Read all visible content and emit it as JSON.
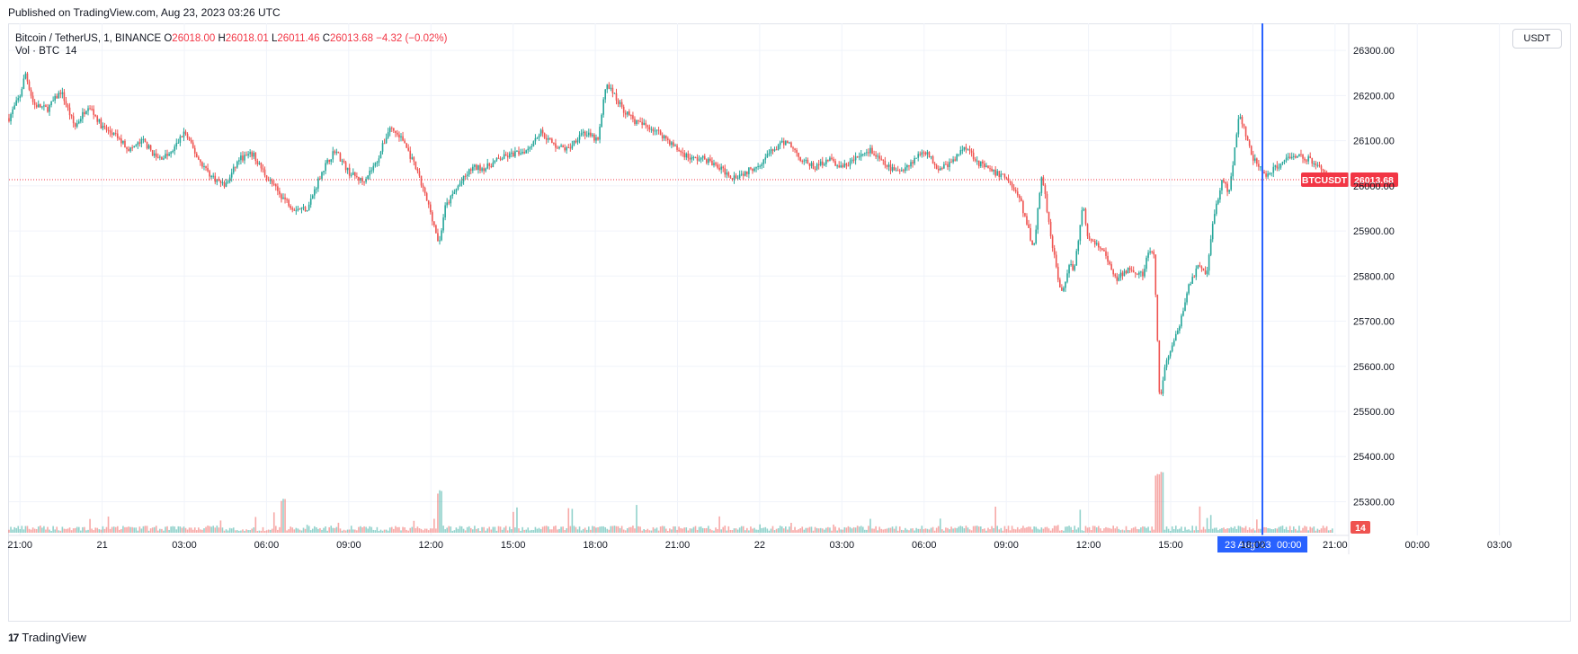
{
  "published": "Published on TradingView.com, Aug 23, 2023 03:26 UTC",
  "legend": {
    "symbol": "Bitcoin / TetherUS, 1, BINANCE",
    "o_label": "O",
    "o_val": "26018.00",
    "h_label": "H",
    "h_val": "26018.01",
    "l_label": "L",
    "l_val": "26011.46",
    "c_label": "C",
    "c_val": "26013.68",
    "change": "−4.32 (−0.02%)",
    "vol_label": "Vol · BTC",
    "vol_val": "14"
  },
  "currency_button": "USDT",
  "footer": {
    "logo": "17",
    "brand": "TradingView"
  },
  "colors": {
    "up": "#26a69a",
    "down": "#ef5350",
    "crosshair": "#2962ff",
    "label_red": "#f23645",
    "grid": "#f0f3fa"
  },
  "chart_data": {
    "type": "candlestick",
    "price_axis": {
      "ticks": [
        25300,
        25400,
        25500,
        25600,
        25700,
        25800,
        25900,
        26000,
        26100,
        26200,
        26300
      ],
      "tick_labels": [
        "25300.00",
        "25400.00",
        "25500.00",
        "25600.00",
        "25700.00",
        "25800.00",
        "25900.00",
        "26000.00",
        "26100.00",
        "26200.00",
        "26300.00"
      ],
      "range": [
        25240,
        26360
      ]
    },
    "time_axis": {
      "labels": [
        "21:00",
        "21",
        "03:00",
        "06:00",
        "09:00",
        "12:00",
        "15:00",
        "18:00",
        "21:00",
        "22",
        "03:00",
        "06:00",
        "09:00",
        "12:00",
        "15:00",
        "18:00",
        "21:00",
        "00:00",
        "03:00"
      ],
      "range_hours": [
        -0.4,
        30.6
      ]
    },
    "path_points": [
      {
        "t": -0.4,
        "p": 26150
      },
      {
        "t": 0.0,
        "p": 26200
      },
      {
        "t": 0.2,
        "p": 26250
      },
      {
        "t": 0.5,
        "p": 26180
      },
      {
        "t": 1.0,
        "p": 26170
      },
      {
        "t": 1.5,
        "p": 26210
      },
      {
        "t": 2.0,
        "p": 26130
      },
      {
        "t": 2.5,
        "p": 26180
      },
      {
        "t": 3.0,
        "p": 26130
      },
      {
        "t": 3.5,
        "p": 26110
      },
      {
        "t": 4.0,
        "p": 26080
      },
      {
        "t": 4.5,
        "p": 26100
      },
      {
        "t": 5.0,
        "p": 26060
      },
      {
        "t": 5.5,
        "p": 26070
      },
      {
        "t": 6.0,
        "p": 26120
      },
      {
        "t": 6.5,
        "p": 26060
      },
      {
        "t": 7.0,
        "p": 26020
      },
      {
        "t": 7.5,
        "p": 26000
      },
      {
        "t": 8.0,
        "p": 26060
      },
      {
        "t": 8.5,
        "p": 26070
      },
      {
        "t": 9.0,
        "p": 26020
      },
      {
        "t": 9.5,
        "p": 25980
      },
      {
        "t": 10.0,
        "p": 25950
      },
      {
        "t": 10.5,
        "p": 25950
      },
      {
        "t": 11.0,
        "p": 26030
      },
      {
        "t": 11.5,
        "p": 26080
      },
      {
        "t": 12.0,
        "p": 26030
      },
      {
        "t": 12.5,
        "p": 26010
      },
      {
        "t": 13.0,
        "p": 26050
      },
      {
        "t": 13.5,
        "p": 26130
      },
      {
        "t": 14.0,
        "p": 26100
      },
      {
        "t": 14.5,
        "p": 26030
      },
      {
        "t": 15.0,
        "p": 25940
      },
      {
        "t": 15.3,
        "p": 25870
      },
      {
        "t": 15.5,
        "p": 25950
      },
      {
        "t": 16.0,
        "p": 26000
      },
      {
        "t": 16.5,
        "p": 26040
      },
      {
        "t": 17.0,
        "p": 26040
      },
      {
        "t": 17.5,
        "p": 26060
      },
      {
        "t": 18.0,
        "p": 26070
      },
      {
        "t": 18.5,
        "p": 26080
      },
      {
        "t": 19.0,
        "p": 26120
      },
      {
        "t": 19.5,
        "p": 26090
      },
      {
        "t": 20.0,
        "p": 26080
      },
      {
        "t": 20.5,
        "p": 26120
      },
      {
        "t": 21.1,
        "p": 26100
      },
      {
        "t": 21.4,
        "p": 26230
      },
      {
        "t": 22.0,
        "p": 26170
      },
      {
        "t": 22.5,
        "p": 26140
      },
      {
        "t": 23.0,
        "p": 26130
      },
      {
        "t": 23.5,
        "p": 26110
      },
      {
        "t": 24.0,
        "p": 26080
      },
      {
        "t": 24.5,
        "p": 26060
      },
      {
        "t": 25.0,
        "p": 26060
      },
      {
        "t": 25.5,
        "p": 26040
      },
      {
        "t": 26.0,
        "p": 26020
      },
      {
        "t": 26.5,
        "p": 26030
      },
      {
        "t": 27.0,
        "p": 26050
      },
      {
        "t": 27.5,
        "p": 26080
      },
      {
        "t": 28.0,
        "p": 26100
      },
      {
        "t": 28.5,
        "p": 26060
      },
      {
        "t": 29.0,
        "p": 26040
      },
      {
        "t": 29.5,
        "p": 26060
      },
      {
        "t": 30.0,
        "p": 26040
      },
      {
        "t": 30.5,
        "p": 26060
      },
      {
        "t": 31.0,
        "p": 26080
      },
      {
        "t": 31.5,
        "p": 26050
      },
      {
        "t": 32.0,
        "p": 26030
      },
      {
        "t": 32.5,
        "p": 26050
      },
      {
        "t": 33.0,
        "p": 26080
      },
      {
        "t": 33.5,
        "p": 26040
      },
      {
        "t": 34.0,
        "p": 26050
      },
      {
        "t": 34.5,
        "p": 26090
      },
      {
        "t": 35.0,
        "p": 26050
      },
      {
        "t": 35.5,
        "p": 26030
      },
      {
        "t": 36.0,
        "p": 26020
      },
      {
        "t": 36.5,
        "p": 25970
      },
      {
        "t": 37.0,
        "p": 25860
      },
      {
        "t": 37.3,
        "p": 26030
      },
      {
        "t": 37.6,
        "p": 25900
      },
      {
        "t": 38.0,
        "p": 25760
      },
      {
        "t": 38.3,
        "p": 25820
      },
      {
        "t": 38.5,
        "p": 25820
      },
      {
        "t": 38.8,
        "p": 25960
      },
      {
        "t": 39.0,
        "p": 25880
      },
      {
        "t": 39.5,
        "p": 25860
      },
      {
        "t": 40.0,
        "p": 25790
      },
      {
        "t": 40.5,
        "p": 25820
      },
      {
        "t": 41.0,
        "p": 25800
      },
      {
        "t": 41.2,
        "p": 25860
      },
      {
        "t": 41.4,
        "p": 25840
      },
      {
        "t": 41.6,
        "p": 25520
      },
      {
        "t": 41.8,
        "p": 25600
      },
      {
        "t": 42.0,
        "p": 25640
      },
      {
        "t": 42.3,
        "p": 25680
      },
      {
        "t": 42.6,
        "p": 25770
      },
      {
        "t": 43.0,
        "p": 25820
      },
      {
        "t": 43.3,
        "p": 25800
      },
      {
        "t": 43.6,
        "p": 25940
      },
      {
        "t": 43.9,
        "p": 26020
      },
      {
        "t": 44.1,
        "p": 25980
      },
      {
        "t": 44.3,
        "p": 26060
      },
      {
        "t": 44.5,
        "p": 26160
      },
      {
        "t": 44.8,
        "p": 26100
      },
      {
        "t": 45.0,
        "p": 26060
      },
      {
        "t": 45.5,
        "p": 26020
      },
      {
        "t": 46.0,
        "p": 26050
      },
      {
        "t": 46.5,
        "p": 26070
      },
      {
        "t": 47.0,
        "p": 26060
      },
      {
        "t": 47.5,
        "p": 26040
      },
      {
        "t": 47.9,
        "p": 26013.68
      }
    ],
    "crosshair_time": "00:00",
    "crosshair_date_label": "23 Aug '23",
    "last_price": 26013.68,
    "last_price_label": "26013.68",
    "last_price_tag": "BTCUSDT",
    "last_volume": 14,
    "last_volume_label": "14"
  }
}
